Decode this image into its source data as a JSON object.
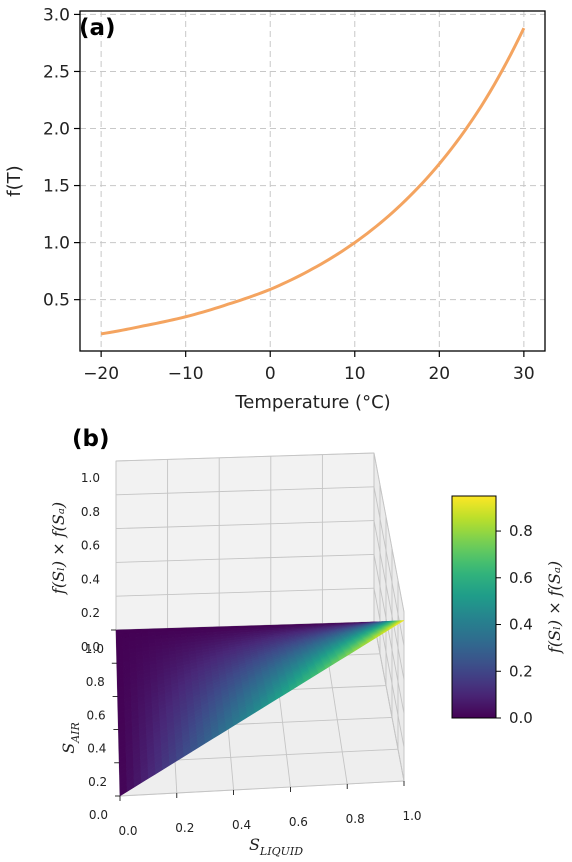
{
  "chart_data": [
    {
      "type": "line",
      "panel_label": "(a)",
      "xlabel": "Temperature (°C)",
      "ylabel": "f(T)",
      "xlim": [
        -22.5,
        32.5
      ],
      "ylim": [
        0.05,
        3.03
      ],
      "xticks": [
        "−20",
        "−10",
        "0",
        "10",
        "20",
        "30"
      ],
      "yticks": [
        "0.5",
        "1.0",
        "1.5",
        "2.0",
        "2.5",
        "3.0"
      ],
      "grid": true,
      "line_color": "#f4a460",
      "x": [
        -20,
        -15,
        -10,
        -5,
        0,
        5,
        10,
        15,
        20,
        25,
        30
      ],
      "y": [
        0.2,
        0.27,
        0.35,
        0.46,
        0.59,
        0.77,
        1.0,
        1.3,
        1.69,
        2.2,
        2.88
      ]
    },
    {
      "type": "surface",
      "panel_label": "(b)",
      "xlabel_main": "S",
      "xlabel_sub": "LIQUID",
      "ylabel_main": "S",
      "ylabel_sub": "AIR",
      "zlabel": "f(Sₗ) × f(Sₐ)",
      "xticks": [
        "0.0",
        "0.2",
        "0.4",
        "0.6",
        "0.8",
        "1.0"
      ],
      "yticks": [
        "0.0",
        "0.2",
        "0.4",
        "0.6",
        "0.8",
        "1.0"
      ],
      "zticks": [
        "0.0",
        "0.2",
        "0.4",
        "0.6",
        "0.8",
        "1.0"
      ],
      "colormap": "viridis",
      "colorbar_label": "f(Sₗ) × f(Sₐ)",
      "colorbar_ticks": [
        "0.0",
        "0.2",
        "0.4",
        "0.6",
        "0.8"
      ],
      "colorbar_range": [
        0.0,
        0.95
      ],
      "x_range": [
        0,
        1
      ],
      "y_range": [
        0,
        1
      ],
      "peak": {
        "x": 1.0,
        "y": 0.0,
        "z": 0.95
      }
    }
  ]
}
